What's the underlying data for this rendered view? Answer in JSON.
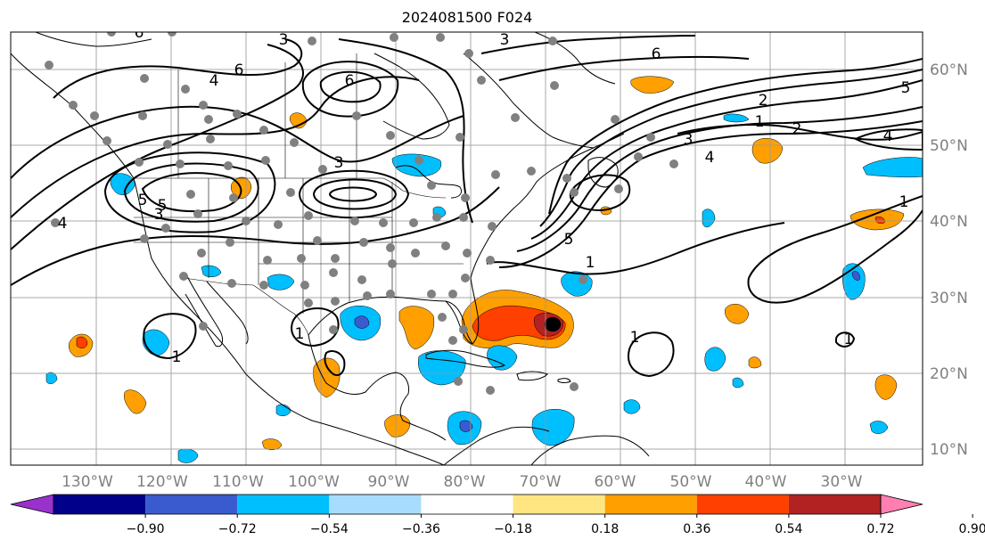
{
  "title": "2024081500 F024",
  "map": {
    "lon_labels": [
      "130°W",
      "120°W",
      "110°W",
      "100°W",
      "90°W",
      "80°W",
      "70°W",
      "60°W",
      "50°W",
      "40°W",
      "30°W"
    ],
    "lat_labels": [
      "60°N",
      "50°N",
      "40°N",
      "30°N",
      "20°N",
      "10°N"
    ],
    "contour_labels": [
      {
        "text": "6"
      },
      {
        "text": "6"
      },
      {
        "text": "4"
      },
      {
        "text": "3"
      },
      {
        "text": "3"
      },
      {
        "text": "4"
      },
      {
        "text": "5"
      },
      {
        "text": "6"
      },
      {
        "text": "3"
      },
      {
        "text": "3"
      },
      {
        "text": "6"
      },
      {
        "text": "2"
      },
      {
        "text": "1"
      },
      {
        "text": "2"
      },
      {
        "text": "3"
      },
      {
        "text": "4"
      },
      {
        "text": "4"
      },
      {
        "text": "5"
      },
      {
        "text": "5"
      },
      {
        "text": "1"
      },
      {
        "text": "1"
      },
      {
        "text": "1"
      },
      {
        "text": "1"
      },
      {
        "text": "1"
      },
      {
        "text": "1"
      },
      {
        "text": "5"
      }
    ]
  },
  "colorbar": {
    "ticks": [
      "−0.90",
      "−0.72",
      "−0.54",
      "−0.36",
      "−0.18",
      "0.18",
      "0.36",
      "0.54",
      "0.72",
      "0.90"
    ],
    "colors": [
      "#9932cc",
      "#00008b",
      "#3a5bd0",
      "#00bfff",
      "#a8dcff",
      "#ffffff",
      "#ffe680",
      "#ffa000",
      "#ff4000",
      "#b22222",
      "#ff80b0"
    ]
  }
}
